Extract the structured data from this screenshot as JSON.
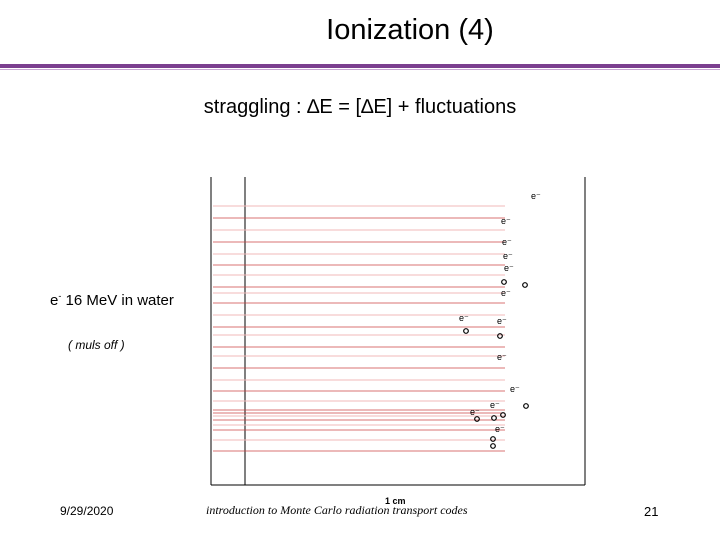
{
  "slide": {
    "title": "Ionization (4)",
    "subtitle": "straggling : ∆E = [∆E] + fluctuations",
    "particle": "e",
    "particle_sup": "-",
    "particle_desc": " 16 MeV in water",
    "muls": "( muls off )",
    "scale": "1 cm",
    "footer_date": "9/29/2020",
    "footer_text": "introduction to Monte Carlo radiation transport codes",
    "page_number": "21"
  },
  "colors": {
    "accent": "#7b3f8f",
    "track_dark": "#cc4444",
    "track_light": "#f2b8b8"
  }
}
